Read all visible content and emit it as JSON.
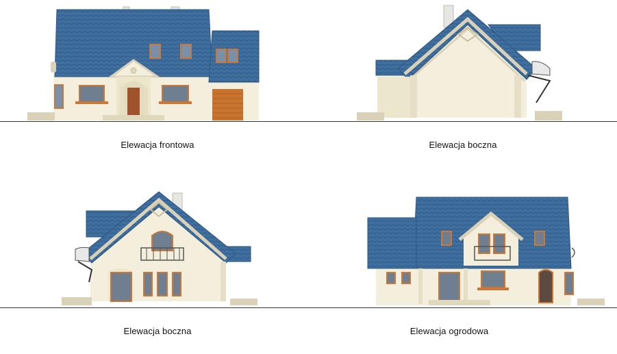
{
  "elevations": [
    {
      "caption": "Elewacja frontowa"
    },
    {
      "caption": "Elewacja boczna"
    },
    {
      "caption": "Elewacja boczna"
    },
    {
      "caption": "Elewacja ogrodowa"
    }
  ],
  "colors": {
    "roof": "#3f6f9f",
    "roof_dark": "#2e5580",
    "wall": "#f3efdc",
    "trim": "#d9d2b8",
    "window_frame": "#c9783a",
    "glass": "#7a8fa8",
    "door": "#a0522d",
    "garage": "#c8742e",
    "ground_line": "#333333"
  },
  "icons": [
    "house-front-elevation",
    "house-side-elevation",
    "house-side-elevation",
    "house-garden-elevation"
  ]
}
